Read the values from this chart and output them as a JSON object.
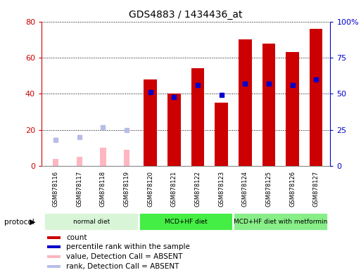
{
  "title": "GDS4883 / 1434436_at",
  "samples": [
    "GSM878116",
    "GSM878117",
    "GSM878118",
    "GSM878119",
    "GSM878120",
    "GSM878121",
    "GSM878122",
    "GSM878123",
    "GSM878124",
    "GSM878125",
    "GSM878126",
    "GSM878127"
  ],
  "count_values": [
    null,
    null,
    null,
    null,
    48,
    40,
    54,
    35,
    70,
    68,
    63,
    76
  ],
  "percentile_values": [
    null,
    null,
    null,
    null,
    51,
    48,
    56,
    49,
    57,
    57,
    56,
    60
  ],
  "absent_value_values": [
    4,
    5,
    10,
    9,
    null,
    null,
    null,
    null,
    null,
    null,
    null,
    null
  ],
  "absent_rank_values": [
    18,
    20,
    27,
    25,
    null,
    null,
    null,
    null,
    null,
    null,
    null,
    null
  ],
  "groups": [
    {
      "label": "normal diet",
      "start": 0,
      "end": 3,
      "color": "#d8f5d8"
    },
    {
      "label": "MCD+HF diet",
      "start": 4,
      "end": 7,
      "color": "#44ee44"
    },
    {
      "label": "MCD+HF diet with metformin",
      "start": 8,
      "end": 11,
      "color": "#88ee88"
    }
  ],
  "ylim_left": [
    0,
    80
  ],
  "ylim_right": [
    0,
    100
  ],
  "yticks_left": [
    0,
    20,
    40,
    60,
    80
  ],
  "yticks_right": [
    0,
    25,
    50,
    75,
    100
  ],
  "ytick_labels_right": [
    "0",
    "25",
    "50",
    "75",
    "100%"
  ],
  "color_count": "#cc0000",
  "color_percentile": "#0000cc",
  "color_absent_value": "#ffb6c1",
  "color_absent_rank": "#b8bce8",
  "bar_width": 0.55,
  "background_plot": "#ffffff",
  "background_sample": "#d8d8d8"
}
